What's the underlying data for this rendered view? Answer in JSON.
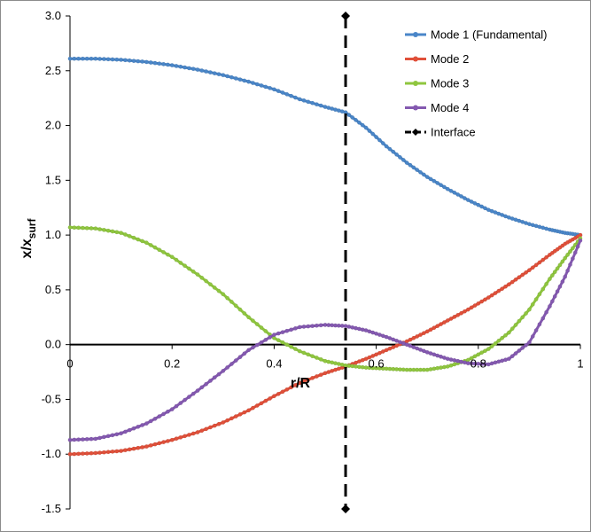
{
  "chart_data": {
    "type": "line",
    "xlabel": "r/R",
    "ylabel_main": "x/x",
    "ylabel_sub": "surf",
    "xlim": [
      0,
      1
    ],
    "ylim": [
      -1.5,
      3.0
    ],
    "x_ticks": [
      "0",
      "0.2",
      "0.4",
      "0.6",
      "0.8",
      "1"
    ],
    "y_ticks": [
      "3.0",
      "2.5",
      "2.0",
      "1.5",
      "1.0",
      "0.5",
      "0.0",
      "-0.5",
      "-1.0",
      "-1.5"
    ],
    "legend_position": "top-right",
    "x": [
      0,
      0.05,
      0.1,
      0.15,
      0.2,
      0.25,
      0.3,
      0.35,
      0.4,
      0.45,
      0.5,
      0.54,
      0.58,
      0.62,
      0.66,
      0.7,
      0.74,
      0.78,
      0.82,
      0.86,
      0.9,
      0.94,
      0.97,
      1.0
    ],
    "series": [
      {
        "name": "Mode 1 (Fundamental)",
        "color": "#4a86c8",
        "values": [
          2.61,
          2.61,
          2.6,
          2.58,
          2.55,
          2.51,
          2.46,
          2.4,
          2.33,
          2.24,
          2.17,
          2.12,
          1.98,
          1.81,
          1.66,
          1.53,
          1.42,
          1.32,
          1.23,
          1.16,
          1.1,
          1.05,
          1.02,
          1.0
        ]
      },
      {
        "name": "Mode 2",
        "color": "#e0503a",
        "values": [
          -1.0,
          -0.99,
          -0.97,
          -0.93,
          -0.87,
          -0.8,
          -0.71,
          -0.6,
          -0.47,
          -0.35,
          -0.26,
          -0.2,
          -0.13,
          -0.05,
          0.03,
          0.12,
          0.22,
          0.32,
          0.43,
          0.55,
          0.68,
          0.82,
          0.92,
          1.0
        ]
      },
      {
        "name": "Mode 3",
        "color": "#8fc63f",
        "values": [
          1.07,
          1.06,
          1.02,
          0.93,
          0.8,
          0.64,
          0.46,
          0.25,
          0.06,
          -0.06,
          -0.15,
          -0.19,
          -0.21,
          -0.22,
          -0.23,
          -0.23,
          -0.2,
          -0.14,
          -0.04,
          0.11,
          0.32,
          0.6,
          0.79,
          0.97
        ]
      },
      {
        "name": "Mode 4",
        "color": "#8459b0",
        "values": [
          -0.87,
          -0.86,
          -0.81,
          -0.72,
          -0.59,
          -0.42,
          -0.24,
          -0.05,
          0.09,
          0.16,
          0.18,
          0.17,
          0.13,
          0.07,
          0.0,
          -0.07,
          -0.13,
          -0.17,
          -0.18,
          -0.13,
          0.02,
          0.35,
          0.62,
          0.95
        ]
      }
    ],
    "interface": {
      "name": "Interface",
      "x": 0.54,
      "y": [
        3.0,
        -1.5
      ],
      "color": "#000000"
    }
  }
}
